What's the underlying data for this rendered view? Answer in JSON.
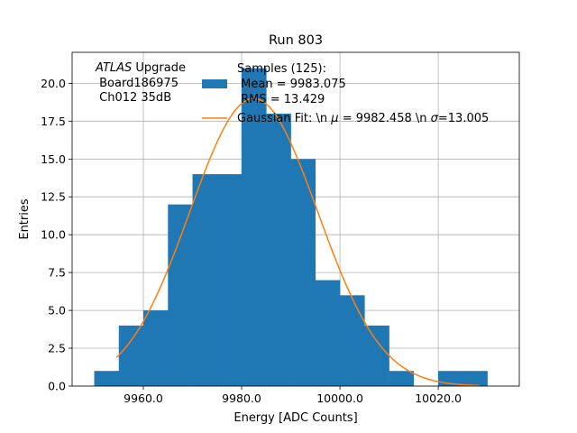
{
  "chart_data": {
    "type": "bar",
    "title": "Run 803",
    "xlabel": "Energy [ADC Counts]",
    "ylabel": "Entries",
    "xlim": [
      9945.5,
      10036.5
    ],
    "ylim": [
      0,
      22.05
    ],
    "grid": true,
    "x_ticks": [
      9960,
      9980,
      10000,
      10020
    ],
    "x_tick_labels": [
      "9960.0",
      "9980.0",
      "10000.0",
      "10020.0"
    ],
    "y_ticks": [
      0,
      2.5,
      5,
      7.5,
      10,
      12.5,
      15,
      17.5,
      20
    ],
    "y_tick_labels": [
      "0.0",
      "2.5",
      "5.0",
      "7.5",
      "10.0",
      "12.5",
      "15.0",
      "17.5",
      "20.0"
    ],
    "bins": [
      {
        "x0": 9950,
        "x1": 9955,
        "value": 1
      },
      {
        "x0": 9955,
        "x1": 9960,
        "value": 4
      },
      {
        "x0": 9960,
        "x1": 9965,
        "value": 5
      },
      {
        "x0": 9965,
        "x1": 9970,
        "value": 12
      },
      {
        "x0": 9970,
        "x1": 9975,
        "value": 14
      },
      {
        "x0": 9975,
        "x1": 9980,
        "value": 14
      },
      {
        "x0": 9980,
        "x1": 9985,
        "value": 21
      },
      {
        "x0": 9985,
        "x1": 9990,
        "value": 18
      },
      {
        "x0": 9990,
        "x1": 9995,
        "value": 15
      },
      {
        "x0": 9995,
        "x1": 10000,
        "value": 7
      },
      {
        "x0": 10000,
        "x1": 10005,
        "value": 6
      },
      {
        "x0": 10005,
        "x1": 10010,
        "value": 4
      },
      {
        "x0": 10010,
        "x1": 10015,
        "value": 1
      },
      {
        "x0": 10015,
        "x1": 10020,
        "value": 0
      },
      {
        "x0": 10020,
        "x1": 10025,
        "value": 1
      },
      {
        "x0": 10025,
        "x1": 10030,
        "value": 1
      }
    ],
    "fit": {
      "amplitude": 19.0,
      "mu": 9982.458,
      "sigma": 13.005,
      "x_start": 9954.5,
      "x_end": 10028.5
    },
    "colors": {
      "bars": "#1f77b4",
      "fit": "#ff7f0e",
      "grid": "#b0b0b0"
    },
    "annotation": {
      "atlas_italic": "ATLAS",
      "atlas_rest": " Upgrade",
      "line2": " Board186975",
      "line3": " Ch012 35dB"
    },
    "legend": {
      "position": "top-center",
      "hist_line1": "Samples (125):",
      "hist_line2": " Mean = 9983.075",
      "hist_line3": " RMS = 13.429",
      "fit_prefix": "Gaussian Fit: \\n ",
      "fit_mu_symbol": "μ",
      "fit_mu_value": " = 9982.458 \\n ",
      "fit_sigma_symbol": "σ",
      "fit_sigma_value": "=13.005"
    }
  }
}
